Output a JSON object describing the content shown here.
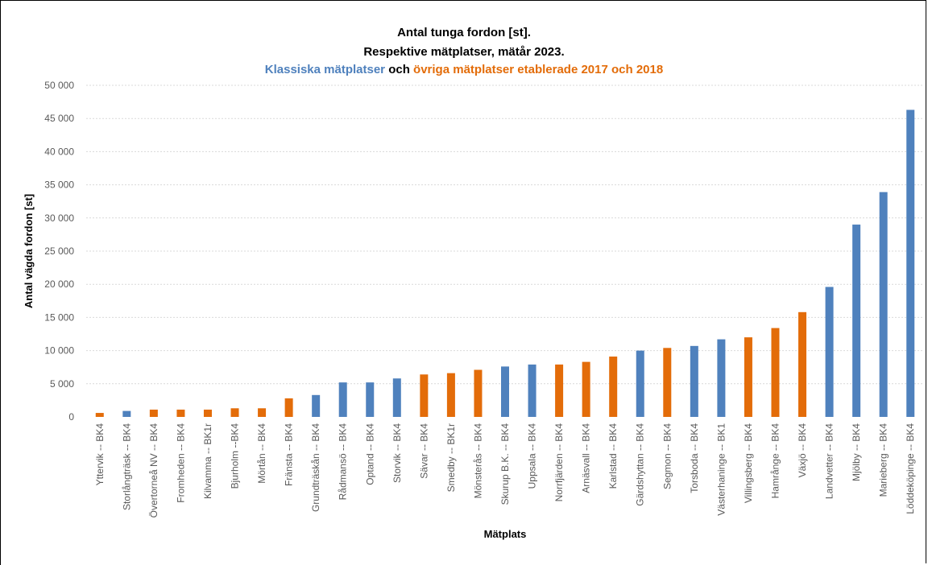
{
  "chart_data": {
    "type": "bar",
    "title": "Antal tunga fordon [st].",
    "subtitle": "Respektive mätplatser, mätår 2023.",
    "subtitle2": {
      "part1": "Klassiska mätplatser",
      "part2": "och",
      "part3": "övriga mätplatser etablerade 2017 och 2018"
    },
    "xlabel": "Mätplats",
    "ylabel": "Antal vägda fordon [st]",
    "ylim": [
      0,
      50000
    ],
    "yticks": [
      "0",
      "5 000",
      "10 000",
      "15 000",
      "20 000",
      "25 000",
      "30 000",
      "35 000",
      "40 000",
      "45 000",
      "50 000"
    ],
    "grid": true,
    "colors": {
      "classic": "#4f81bd",
      "other": "#e36c09"
    },
    "categories": [
      "Yttervik -- BK4",
      "Storlångträsk -- BK4",
      "Övertorneå NV -- BK4",
      "Fromheden -- BK4",
      "Kilvamma -- BK1r",
      "Bjurholm --BK4",
      "Mörtån -- BK4",
      "Fränsta -- BK4",
      "Grundträskån -- BK4",
      "Rådmansö -- BK4",
      "Optand -- BK4",
      "Storvik -- BK4",
      "Sävar -- BK4",
      "Smedby -- BK1r",
      "Mönsterås -- BK4",
      "Skurup B.K. -- BK4",
      "Uppsala -- BK4",
      "Norrfjärden -- BK4",
      "Arnäsvall -- BK4",
      "Karlstad -- BK4",
      "Gärdshyttan -- BK4",
      "Segmon -- BK4",
      "Torsboda -- BK4",
      "Västerhaninge -- BK1",
      "Villingsberg -- BK4",
      "Hamrånge -- BK4",
      "Växjö -- BK4",
      "Landvetter -- BK4",
      "Mjölby -- BK4",
      "Marieberg -- BK4",
      "Löddeköpinge -- BK4"
    ],
    "values": [
      600,
      900,
      1100,
      1100,
      1100,
      1300,
      1300,
      2800,
      3300,
      5200,
      5200,
      5800,
      6400,
      6600,
      7100,
      7600,
      7900,
      7900,
      8300,
      9100,
      10000,
      10400,
      10700,
      11700,
      12000,
      13400,
      15800,
      19600,
      29000,
      33900,
      46300
    ],
    "groups": [
      "other",
      "classic",
      "other",
      "other",
      "other",
      "other",
      "other",
      "other",
      "classic",
      "classic",
      "classic",
      "classic",
      "other",
      "other",
      "other",
      "classic",
      "classic",
      "other",
      "other",
      "other",
      "classic",
      "other",
      "classic",
      "classic",
      "other",
      "other",
      "other",
      "classic",
      "classic",
      "classic",
      "classic"
    ]
  }
}
